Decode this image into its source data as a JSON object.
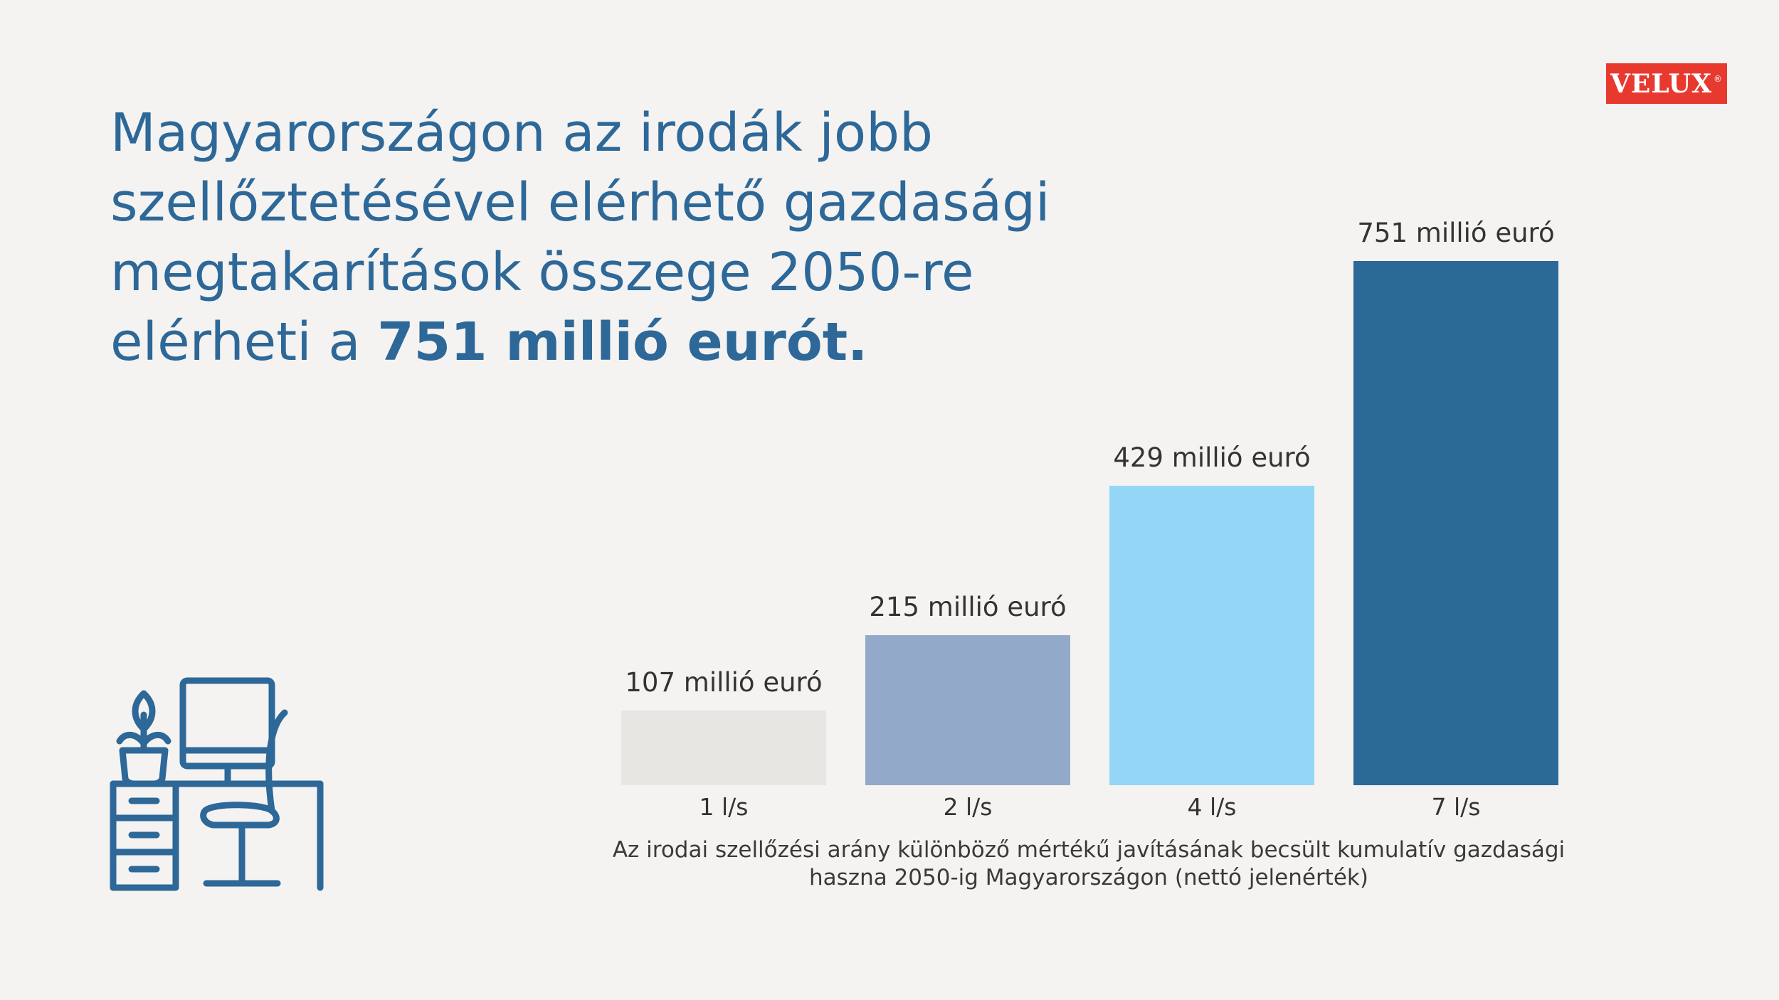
{
  "brand": {
    "logo_text": "VELUX",
    "registered_mark": "®",
    "color": "#e8392f"
  },
  "headline": {
    "line1": "Magyarországon az irodák jobb",
    "line2": "szellőztetésével elérhető gazdasági",
    "line3": "megtakarítások összege 2050-re",
    "line4_prefix": "elérheti a ",
    "line4_bold": "751 millió eurót."
  },
  "icon": {
    "name": "office-desk-icon",
    "color": "#2d6898"
  },
  "chart_data": {
    "type": "bar",
    "categories": [
      "1 l/s",
      "2 l/s",
      "4 l/s",
      "7 l/s"
    ],
    "values": [
      107,
      215,
      429,
      751
    ],
    "value_labels": [
      "107 millió euró",
      "215 millió euró",
      "429 millió euró",
      "751 millió euró"
    ],
    "colors": [
      "#e7e6e2",
      "#93a9c9",
      "#94d6f5",
      "#2b6a97"
    ],
    "ylim": [
      0,
      751
    ],
    "grid": false,
    "legend": "none",
    "caption_line1": "Az irodai szellőzési arány különböző mértékű javításának becsült kumulatív gazdasági",
    "caption_line2": "haszna 2050-ig Magyarországon (nettó jelenérték)"
  }
}
